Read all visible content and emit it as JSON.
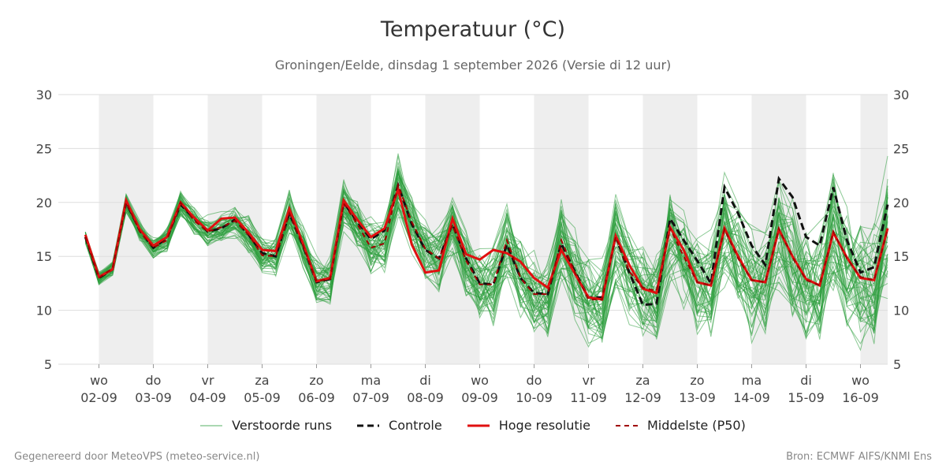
{
  "header": {
    "title": "Temperatuur (°C)",
    "subtitle": "Groningen/Eelde, dinsdag  1 september 2026 (Versie di 12 uur)"
  },
  "footer": {
    "left": "Gegenereerd door MeteoVPS (meteo-service.nl)",
    "right": "Bron: ECMWF AIFS/KNMI Ens"
  },
  "colors": {
    "ensemble": "#2e9e3e",
    "control": "#111111",
    "high_res": "#e01010",
    "median": "#a00000",
    "weekend_band": "#eeeeee",
    "grid": "#dddddd"
  },
  "chart_data": {
    "type": "line",
    "title": "Temperatuur (°C)",
    "subtitle": "Groningen/Eelde, dinsdag  1 september 2026 (Versie di 12 uur)",
    "xlabel": "",
    "ylabel": "",
    "ylim": [
      5,
      30
    ],
    "yticks": [
      5,
      10,
      15,
      20,
      25,
      30
    ],
    "x_unit_note": "",
    "day_ticks": [
      {
        "day": "wo",
        "date": "02-09"
      },
      {
        "day": "do",
        "date": "03-09"
      },
      {
        "day": "vr",
        "date": "04-09"
      },
      {
        "day": "za",
        "date": "05-09"
      },
      {
        "day": "zo",
        "date": "06-09"
      },
      {
        "day": "ma",
        "date": "07-09"
      },
      {
        "day": "di",
        "date": "08-09"
      },
      {
        "day": "wo",
        "date": "09-09"
      },
      {
        "day": "do",
        "date": "10-09"
      },
      {
        "day": "vr",
        "date": "11-09"
      },
      {
        "day": "za",
        "date": "12-09"
      },
      {
        "day": "zo",
        "date": "13-09"
      },
      {
        "day": "ma",
        "date": "14-09"
      },
      {
        "day": "di",
        "date": "15-09"
      },
      {
        "day": "wo",
        "date": "16-09"
      }
    ],
    "grid": true,
    "legend_position": "bottom",
    "legend": [
      "Verstoorde runs",
      "Controle",
      "Hoge resolutie",
      "Middelste (P50)"
    ],
    "times": [
      -0.25,
      0,
      0.25,
      0.5,
      0.75,
      1,
      1.25,
      1.5,
      1.75,
      2,
      2.25,
      2.5,
      2.75,
      3,
      3.25,
      3.5,
      3.75,
      4,
      4.25,
      4.5,
      4.75,
      5,
      5.25,
      5.5,
      5.75,
      6,
      6.25,
      6.5,
      6.75,
      7,
      7.25,
      7.5,
      7.75,
      8,
      8.25,
      8.5,
      8.75,
      9,
      9.25,
      9.5,
      9.75,
      10,
      10.25,
      10.5,
      10.75,
      11,
      11.25,
      11.5,
      11.75,
      12,
      12.25,
      12.5,
      12.75,
      13,
      13.25,
      13.5,
      13.75,
      14,
      14.25,
      14.5
    ],
    "series": [
      {
        "name": "Hoge resolutie",
        "values": [
          17.0,
          13.1,
          13.8,
          20.2,
          17.5,
          16.0,
          16.8,
          20.0,
          18.6,
          17.4,
          18.5,
          18.6,
          17.2,
          15.6,
          15.5,
          19.4,
          16.2,
          12.7,
          13.0,
          20.2,
          18.4,
          16.8,
          17.6,
          21.2,
          16.1,
          13.5,
          13.7,
          18.5,
          15.2,
          14.7,
          15.6,
          15.3,
          14.5,
          13.0,
          12.1,
          15.6,
          13.4,
          11.2,
          11.0,
          16.9,
          14.2,
          12.0,
          11.6,
          17.7,
          15.6,
          12.6,
          12.3,
          17.6,
          15.0,
          12.8,
          12.6,
          17.5,
          15.0,
          12.9,
          12.3,
          17.2,
          14.9,
          13.0,
          12.8,
          17.6
        ]
      },
      {
        "name": "Controle",
        "values": [
          16.8,
          13.0,
          13.8,
          20.0,
          17.4,
          15.8,
          16.7,
          19.8,
          18.5,
          17.3,
          17.6,
          18.4,
          17.0,
          15.3,
          15.0,
          19.0,
          16.0,
          12.6,
          12.9,
          20.0,
          18.2,
          16.6,
          17.4,
          21.6,
          18.0,
          15.6,
          14.8,
          18.0,
          14.8,
          12.5,
          12.4,
          16.1,
          13.0,
          11.6,
          11.5,
          16.2,
          13.6,
          11.2,
          11.2,
          16.8,
          13.5,
          10.5,
          10.6,
          18.5,
          16.5,
          14.6,
          12.5,
          21.4,
          19.0,
          16.0,
          14.2,
          22.2,
          20.5,
          16.8,
          16.0,
          21.4,
          16.5,
          13.5,
          14.0,
          19.8
        ]
      },
      {
        "name": "Middelste (P50)",
        "values": [
          16.8,
          13.0,
          13.9,
          20.0,
          17.3,
          15.8,
          16.5,
          20.0,
          18.3,
          17.3,
          17.7,
          18.3,
          17.0,
          15.1,
          15.0,
          19.0,
          16.0,
          12.7,
          12.9,
          19.9,
          18.0,
          15.8,
          16.2,
          21.6,
          18.2,
          15.7,
          14.8,
          17.9,
          14.6,
          12.4,
          12.4,
          16.5,
          13.0,
          11.5,
          11.5,
          16.5,
          13.5,
          11.0,
          11.0,
          16.8,
          13.6,
          12.1,
          11.8,
          17.6,
          15.0,
          12.6,
          12.3,
          17.5,
          14.8,
          12.8,
          12.6,
          17.6,
          14.9,
          12.8,
          12.3,
          17.3,
          14.8,
          13.1,
          12.8,
          17.5
        ]
      }
    ]
  }
}
